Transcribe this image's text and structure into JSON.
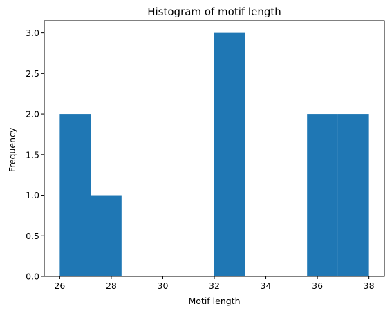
{
  "chart_data": {
    "type": "bar",
    "title": "Histogram of motif length",
    "xlabel": "Motif length",
    "ylabel": "Frequency",
    "bins": [
      {
        "start": 26.0,
        "end": 27.2,
        "count": 2
      },
      {
        "start": 27.2,
        "end": 28.4,
        "count": 1
      },
      {
        "start": 28.4,
        "end": 29.6,
        "count": 0
      },
      {
        "start": 29.6,
        "end": 30.8,
        "count": 0
      },
      {
        "start": 30.8,
        "end": 32.0,
        "count": 0
      },
      {
        "start": 32.0,
        "end": 33.2,
        "count": 3
      },
      {
        "start": 33.2,
        "end": 34.4,
        "count": 0
      },
      {
        "start": 34.4,
        "end": 35.6,
        "count": 0
      },
      {
        "start": 35.6,
        "end": 36.8,
        "count": 2
      },
      {
        "start": 36.8,
        "end": 38.0,
        "count": 2
      }
    ],
    "xlim": [
      25.4,
      38.6
    ],
    "ylim": [
      0,
      3.15
    ],
    "xticks": [
      26,
      28,
      30,
      32,
      34,
      36,
      38
    ],
    "xtick_labels": [
      "26",
      "28",
      "30",
      "32",
      "34",
      "36",
      "38"
    ],
    "yticks": [
      0,
      0.5,
      1.0,
      1.5,
      2.0,
      2.5,
      3.0
    ],
    "ytick_labels": [
      "0.0",
      "0.5",
      "1.0",
      "1.5",
      "2.0",
      "2.5",
      "3.0"
    ],
    "bar_color": "#1f77b4",
    "grid": false,
    "legend": "none"
  }
}
